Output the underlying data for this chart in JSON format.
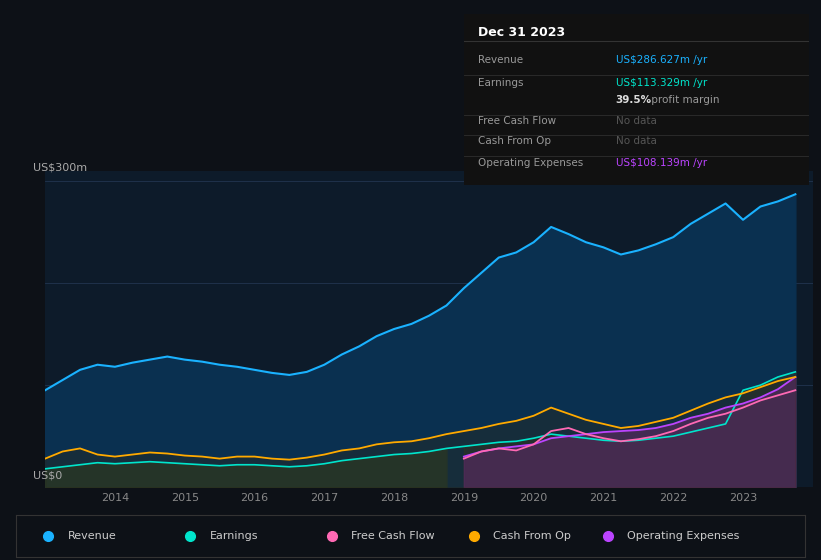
{
  "bg_color": "#0d1117",
  "plot_bg_color": "#0d1b2a",
  "title_box_date": "Dec 31 2023",
  "ylabel_top": "US$300m",
  "ylabel_bottom": "US$0",
  "series_revenue_color": "#1ab2ff",
  "series_earnings_color": "#00e5cc",
  "series_fcf_color": "#ff69b4",
  "series_cashop_color": "#ffaa00",
  "series_opex_color": "#bb44ff",
  "x_years": [
    2013.0,
    2013.25,
    2013.5,
    2013.75,
    2014.0,
    2014.25,
    2014.5,
    2014.75,
    2015.0,
    2015.25,
    2015.5,
    2015.75,
    2016.0,
    2016.25,
    2016.5,
    2016.75,
    2017.0,
    2017.25,
    2017.5,
    2017.75,
    2018.0,
    2018.25,
    2018.5,
    2018.75,
    2019.0,
    2019.25,
    2019.5,
    2019.75,
    2020.0,
    2020.25,
    2020.5,
    2020.75,
    2021.0,
    2021.25,
    2021.5,
    2021.75,
    2022.0,
    2022.25,
    2022.5,
    2022.75,
    2023.0,
    2023.25,
    2023.5,
    2023.75
  ],
  "revenue": [
    95,
    105,
    115,
    120,
    118,
    122,
    125,
    128,
    125,
    123,
    120,
    118,
    115,
    112,
    110,
    113,
    120,
    130,
    138,
    148,
    155,
    160,
    168,
    178,
    195,
    210,
    225,
    230,
    240,
    255,
    248,
    240,
    235,
    228,
    232,
    238,
    245,
    258,
    268,
    278,
    262,
    275,
    280,
    287
  ],
  "earnings": [
    18,
    20,
    22,
    24,
    23,
    24,
    25,
    24,
    23,
    22,
    21,
    22,
    22,
    21,
    20,
    21,
    23,
    26,
    28,
    30,
    32,
    33,
    35,
    38,
    40,
    42,
    44,
    45,
    48,
    52,
    50,
    48,
    46,
    45,
    46,
    48,
    50,
    54,
    58,
    62,
    95,
    100,
    108,
    113
  ],
  "free_cash_flow": [
    0,
    0,
    0,
    0,
    0,
    0,
    0,
    0,
    0,
    0,
    0,
    0,
    0,
    0,
    0,
    0,
    0,
    0,
    0,
    0,
    0,
    0,
    0,
    0,
    28,
    35,
    38,
    36,
    42,
    55,
    58,
    52,
    48,
    45,
    47,
    50,
    55,
    62,
    68,
    72,
    78,
    85,
    90,
    95
  ],
  "cash_from_op": [
    28,
    35,
    38,
    32,
    30,
    32,
    34,
    33,
    31,
    30,
    28,
    30,
    30,
    28,
    27,
    29,
    32,
    36,
    38,
    42,
    44,
    45,
    48,
    52,
    55,
    58,
    62,
    65,
    70,
    78,
    72,
    66,
    62,
    58,
    60,
    64,
    68,
    75,
    82,
    88,
    92,
    98,
    104,
    108
  ],
  "operating_expenses": [
    0,
    0,
    0,
    0,
    0,
    0,
    0,
    0,
    0,
    0,
    0,
    0,
    0,
    0,
    0,
    0,
    0,
    0,
    0,
    0,
    0,
    0,
    0,
    0,
    30,
    35,
    38,
    40,
    42,
    48,
    50,
    52,
    54,
    55,
    56,
    58,
    62,
    68,
    72,
    78,
    82,
    88,
    96,
    108
  ],
  "x_tick_labels": [
    "2014",
    "2015",
    "2016",
    "2017",
    "2018",
    "2019",
    "2020",
    "2021",
    "2022",
    "2023"
  ],
  "x_tick_positions": [
    2014,
    2015,
    2016,
    2017,
    2018,
    2019,
    2020,
    2021,
    2022,
    2023
  ],
  "ylim": [
    0,
    310
  ],
  "xlim": [
    2013.0,
    2024.0
  ],
  "legend_items": [
    {
      "label": "Revenue",
      "color": "#1ab2ff"
    },
    {
      "label": "Earnings",
      "color": "#00e5cc"
    },
    {
      "label": "Free Cash Flow",
      "color": "#ff69b4"
    },
    {
      "label": "Cash From Op",
      "color": "#ffaa00"
    },
    {
      "label": "Operating Expenses",
      "color": "#bb44ff"
    }
  ]
}
